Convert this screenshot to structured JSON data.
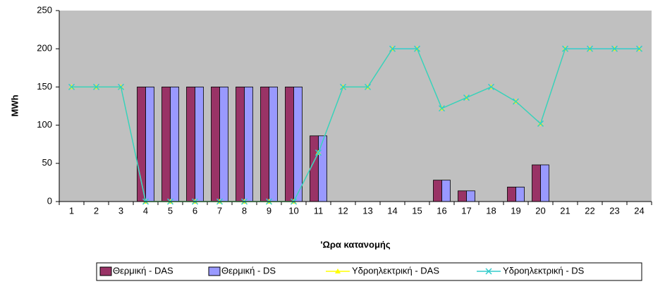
{
  "chart_data": {
    "type": "bar_line",
    "x_label": "'Ωρα κατανομής",
    "y_label": "MWh",
    "categories": [
      "1",
      "2",
      "3",
      "4",
      "5",
      "6",
      "7",
      "8",
      "9",
      "10",
      "11",
      "12",
      "13",
      "14",
      "15",
      "16",
      "17",
      "18",
      "19",
      "20",
      "21",
      "22",
      "23",
      "24"
    ],
    "ylim": [
      0,
      250
    ],
    "yticks": [
      0,
      50,
      100,
      150,
      200,
      250
    ],
    "plot_background": "#c0c0c0",
    "series": [
      {
        "name": "Θερμική - DAS",
        "kind": "bar",
        "color": "#993366",
        "values": [
          0,
          0,
          0,
          150,
          150,
          150,
          150,
          150,
          150,
          150,
          86,
          0,
          0,
          0,
          0,
          28,
          14,
          0,
          19,
          48,
          0,
          0,
          0,
          0
        ]
      },
      {
        "name": "Θερμική - DS",
        "kind": "bar",
        "color": "#9999ff",
        "values": [
          0,
          0,
          0,
          150,
          150,
          150,
          150,
          150,
          150,
          150,
          86,
          0,
          0,
          0,
          0,
          28,
          14,
          0,
          19,
          48,
          0,
          0,
          0,
          0
        ]
      },
      {
        "name": "Υδροηλεκτρική - DAS",
        "kind": "line",
        "marker": "triangle",
        "color": "#ffff00",
        "values": [
          150,
          150,
          150,
          0,
          0,
          0,
          0,
          0,
          0,
          0,
          64,
          150,
          150,
          200,
          200,
          122,
          136,
          150,
          131,
          102,
          200,
          200,
          200,
          200
        ]
      },
      {
        "name": "Υδροηλεκτρική - DS",
        "kind": "line",
        "marker": "x",
        "color": "#33cccc",
        "values": [
          150,
          150,
          150,
          0,
          0,
          0,
          0,
          0,
          0,
          0,
          64,
          150,
          150,
          200,
          200,
          122,
          136,
          150,
          131,
          102,
          200,
          200,
          200,
          200
        ]
      }
    ]
  }
}
